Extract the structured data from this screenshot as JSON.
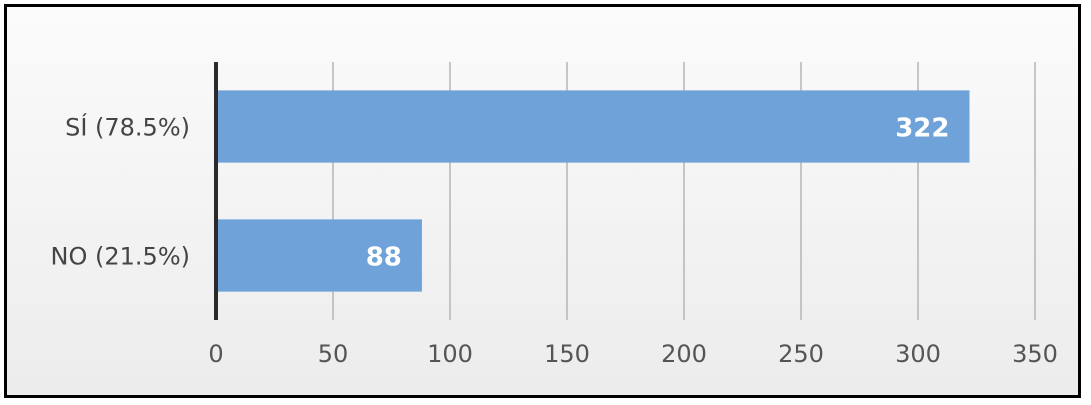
{
  "chart_data": {
    "type": "bar",
    "orientation": "horizontal",
    "categories": [
      "SÍ (78.5%)",
      "NO (21.5%)"
    ],
    "values": [
      322,
      88
    ],
    "series": [
      {
        "values": [
          322,
          88
        ],
        "color": "#6FA2D8"
      }
    ],
    "xlim": [
      0,
      350
    ],
    "xticks": [
      "0",
      "50",
      "100",
      "150",
      "200",
      "250",
      "300",
      "350"
    ],
    "grid": "vertical",
    "title": "",
    "xlabel": "",
    "ylabel": ""
  }
}
